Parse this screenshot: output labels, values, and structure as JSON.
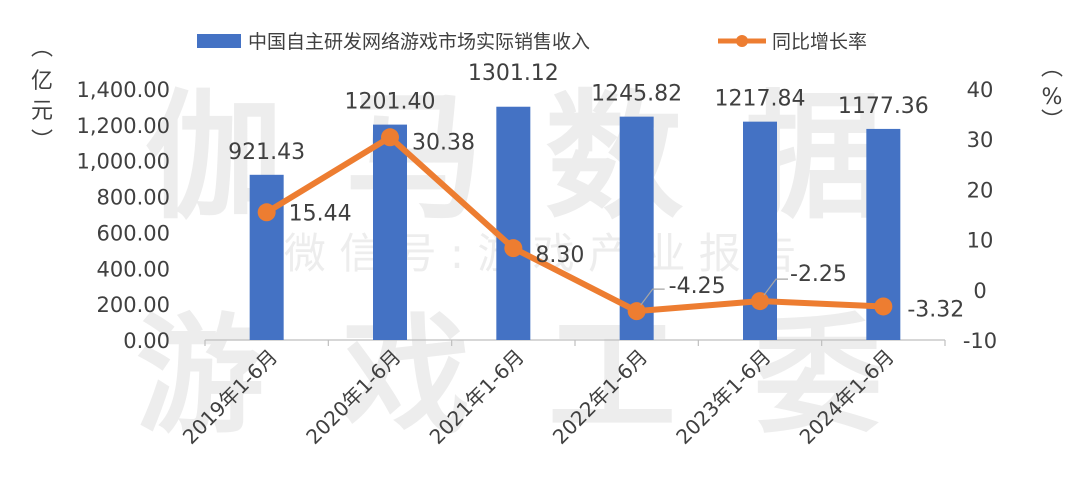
{
  "watermark": {
    "line1": "伽马数据",
    "line2": "微 信 号 : 游 戏 产 业 报 告",
    "line3": "游戏工委"
  },
  "chart_data": {
    "type": "bar",
    "categories": [
      "2019年1-6月",
      "2020年1-6月",
      "2021年1-6月",
      "2022年1-6月",
      "2023年1-6月",
      "2024年1-6月"
    ],
    "series": [
      {
        "name": "中国自主研发网络游戏市场实际销售收入",
        "type": "bar",
        "axis": "left",
        "color": "#4472C4",
        "values": [
          921.43,
          1201.4,
          1301.12,
          1245.82,
          1217.84,
          1177.36
        ],
        "labels": [
          "921.43",
          "1201.40",
          "1301.12",
          "1245.82",
          "1217.84",
          "1177.36"
        ]
      },
      {
        "name": "同比增长率",
        "type": "line",
        "axis": "right",
        "color": "#ED7D31",
        "values": [
          15.44,
          30.38,
          8.3,
          -4.25,
          -2.25,
          -3.32
        ],
        "labels": [
          "15.44",
          "30.38",
          "8.30",
          "-4.25",
          "-2.25",
          "-3.32"
        ]
      }
    ],
    "y_left": {
      "label": "(亿元)",
      "range": [
        0,
        1400
      ],
      "ticks": [
        0,
        200,
        400,
        600,
        800,
        1000,
        1200,
        1400
      ],
      "tick_labels": [
        "0.00",
        "200.00",
        "400.00",
        "600.00",
        "800.00",
        "1,000.00",
        "1,200.00",
        "1,400.00"
      ]
    },
    "y_right": {
      "label": "(%)",
      "range": [
        -10,
        40
      ],
      "ticks": [
        -10,
        0,
        10,
        20,
        30,
        40
      ],
      "tick_labels": [
        "-10",
        "0",
        "10",
        "20",
        "30",
        "40"
      ]
    },
    "legend_position": "top",
    "grid": false
  }
}
